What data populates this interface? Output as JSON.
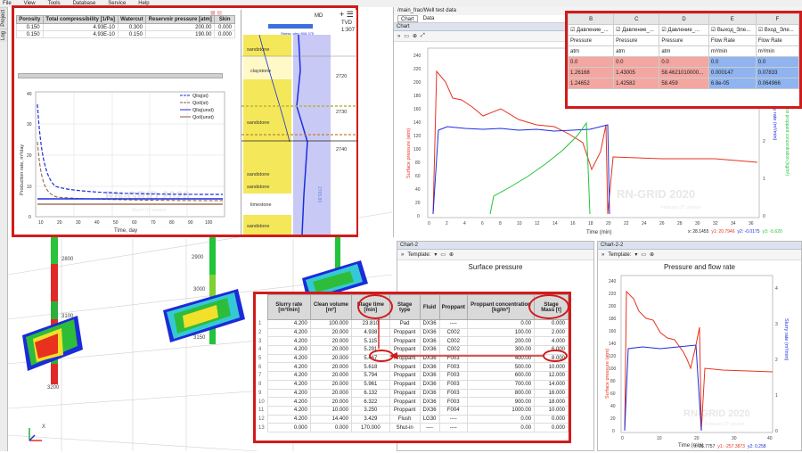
{
  "menu": [
    "File",
    "View",
    "Tools",
    "Database",
    "Service",
    "Help"
  ],
  "side_tabs": [
    "Project",
    "Log"
  ],
  "depth_labels": [
    "2800",
    "2900",
    "3000",
    "3100",
    "3150",
    "3200"
  ],
  "axes_label": "X",
  "top_left": {
    "props_headers": [
      "Porosity",
      "Total compressibility [1/Pa]",
      "Watercut",
      "Reservoir pressure [atm]",
      "Skin"
    ],
    "props_rows": [
      [
        "0.150",
        "4.93E-10",
        "0.300",
        "200.00",
        "0.000"
      ],
      [
        "0.150",
        "4.93E-10",
        "0.150",
        "190.00",
        "0.000"
      ]
    ],
    "chart": {
      "ylabel": "Production rate, m³/day",
      "xlabel": "Time, day",
      "legend": [
        "Qliq(st)",
        "Qoil(st)",
        "Qliq(unst)",
        "Qoil(unst)"
      ],
      "xticks": [
        "10",
        "20",
        "30",
        "40",
        "50",
        "60",
        "70",
        "80",
        "90",
        "100"
      ],
      "yticks": [
        "0",
        "10",
        "20",
        "30",
        "40"
      ],
      "watermark": "RN-GRID 2020",
      "wm_sub": "March 01 version"
    },
    "log": {
      "md_label": "MD",
      "tvd_label": "TVD",
      "top_depth": "1:307",
      "layers": [
        "sandstone",
        "claystone",
        "sandstone",
        "sandstone",
        "sandstone",
        "limestone",
        "sandstone"
      ],
      "depths": [
        "2720",
        "2730",
        "2740"
      ],
      "curve_label": "Stress, atm=508.375",
      "side_label": "2765.83"
    }
  },
  "main_frac": {
    "title": "/main_frac/Well test data",
    "tabs": [
      "Chart",
      "Data"
    ],
    "chart_title": "Chart",
    "ylabel_left": "Surface pressure (atm)",
    "ylabel_right": "Slurry rate (m³/min)",
    "ylabel_right2": "Surface proppant concentration (kg/m³)",
    "xlabel": "Time (min)",
    "xticks": [
      "0",
      "2",
      "4",
      "6",
      "8",
      "10",
      "12",
      "14",
      "16",
      "18",
      "20",
      "22",
      "24",
      "26",
      "28",
      "30",
      "32",
      "34",
      "36"
    ],
    "yticks": [
      "0",
      "20",
      "40",
      "60",
      "80",
      "100",
      "120",
      "140",
      "160",
      "180",
      "200",
      "220",
      "240"
    ],
    "y2ticks": [
      "0",
      "1",
      "2",
      "3",
      "4"
    ],
    "watermark": "RN-GRID 2020",
    "wm_sub": "February 27 version",
    "status": {
      "x": "x: 28.1455",
      "y1": "y1: 20.7946",
      "y2": "y2: -0.0175",
      "y3": "y3: -5.620"
    }
  },
  "data_grid": {
    "cols": [
      "B",
      "C",
      "D",
      "E",
      "F"
    ],
    "checks": [
      "Давление_...",
      "Давление_...",
      "Давление_...",
      "Выход_Элe...",
      "Вход_Элe..."
    ],
    "names": [
      "Pressure",
      "Pressure",
      "Pressure",
      "Flow Rate",
      "Flow Rate"
    ],
    "units": [
      "atm",
      "atm",
      "atm",
      "m³/min",
      "m³/min"
    ],
    "rows": [
      [
        "0.0",
        "0.0",
        "0.0",
        "0.0",
        "0.0"
      ],
      [
        "1.26168",
        "1.43005",
        "58.4621010000...",
        "0.000147",
        "0.07833"
      ],
      [
        "1.24652",
        "1.42582",
        "58.459",
        "6.8e-05",
        "0.064966"
      ]
    ]
  },
  "chart2": {
    "title": "Chart-2",
    "template_label": "Template:",
    "plot_title": "Surface pressure"
  },
  "chart22": {
    "title": "Chart-2-2",
    "template_label": "Template:",
    "plot_title": "Pressure and flow rate",
    "ylabel_left": "Surface pressure (atm)",
    "ylabel_right": "Slurry rate (m³/min)",
    "xlabel": "Time (min)",
    "xticks": [
      "0",
      "10",
      "20",
      "30",
      "40"
    ],
    "yticks": [
      "0",
      "20",
      "40",
      "60",
      "80",
      "100",
      "120",
      "140",
      "160",
      "180",
      "200",
      "220",
      "240"
    ],
    "y2ticks": [
      "0",
      "1",
      "2",
      "3",
      "4"
    ],
    "watermark": "RN-GRID 2020",
    "wm_sub": "February 27 version",
    "status": {
      "x": "x: 26.7757",
      "y1": "y1: -257.3873",
      "y2": "y2: 0.258"
    }
  },
  "stages": {
    "headers": [
      "Slurry rate [m³/min]",
      "Clean volume [m³]",
      "Stage time [min]",
      "Stage type",
      "Fluid",
      "Proppant",
      "Proppant concentration [kg/m³]",
      "Stage Mass [t]"
    ],
    "rows": [
      [
        "1",
        "4.200",
        "100.000",
        "23.810",
        "Pad",
        "DX36",
        "----",
        "0.00",
        "0.000"
      ],
      [
        "2",
        "4.200",
        "20.000",
        "4.938",
        "Proppant",
        "DX36",
        "C002",
        "100.00",
        "2.000"
      ],
      [
        "3",
        "4.200",
        "20.000",
        "5.115",
        "Proppant",
        "DX36",
        "C002",
        "200.00",
        "4.000"
      ],
      [
        "4",
        "4.200",
        "20.000",
        "5.291",
        "Proppant",
        "DX36",
        "C002",
        "300.00",
        "6.000"
      ],
      [
        "5",
        "4.200",
        "20.000",
        "5.467",
        "Proppant",
        "DX36",
        "F003",
        "400.00",
        "8.000"
      ],
      [
        "6",
        "4.200",
        "20.000",
        "5.618",
        "Proppant",
        "DX36",
        "F003",
        "500.00",
        "10.000"
      ],
      [
        "7",
        "4.200",
        "20.000",
        "5.794",
        "Proppant",
        "DX36",
        "F003",
        "600.00",
        "12.000"
      ],
      [
        "8",
        "4.200",
        "20.000",
        "5.961",
        "Proppant",
        "DX36",
        "F003",
        "700.00",
        "14.000"
      ],
      [
        "9",
        "4.200",
        "20.000",
        "6.132",
        "Proppant",
        "DX36",
        "F003",
        "800.00",
        "16.000"
      ],
      [
        "10",
        "4.200",
        "20.000",
        "6.322",
        "Proppant",
        "DX36",
        "F003",
        "900.00",
        "18.000"
      ],
      [
        "11",
        "4.200",
        "10.000",
        "3.250",
        "Proppant",
        "DX36",
        "F004",
        "1000.00",
        "10.000"
      ],
      [
        "12",
        "4.200",
        "14.400",
        "3.429",
        "Flush",
        "LG30",
        "----",
        "0.00",
        "0.000"
      ],
      [
        "13",
        "0.000",
        "0.000",
        "170.000",
        "Shut-in",
        "----",
        "----",
        "0.00",
        "0.000"
      ]
    ]
  },
  "colors": {
    "red": "#d11b1b",
    "pressure": "#e8321e",
    "rate": "#1a2ee0",
    "conc": "#22c43a"
  }
}
